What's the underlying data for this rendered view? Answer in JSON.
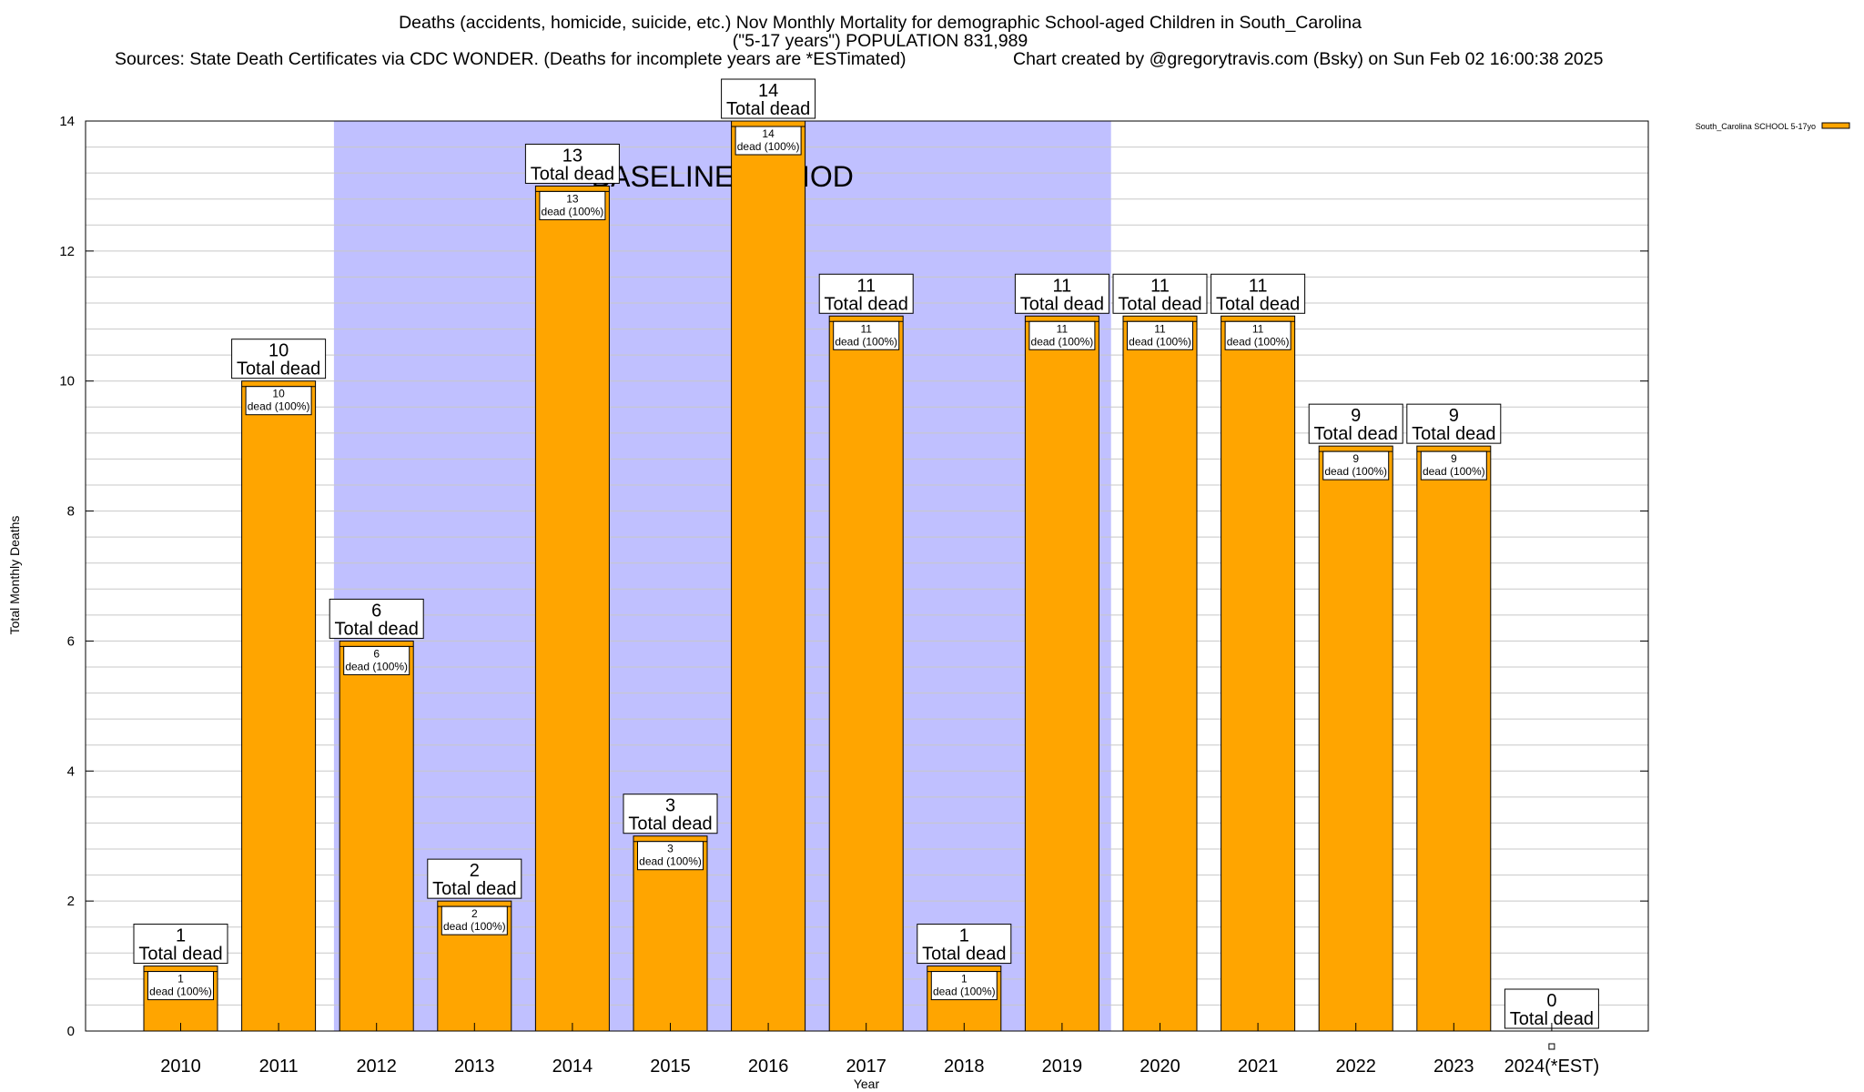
{
  "chart_data": {
    "type": "bar",
    "title_line1": "Deaths (accidents, homicide, suicide, etc.) Nov Monthly Mortality for demographic School-aged Children in South_Carolina",
    "title_line2": "(\"5-17 years\") POPULATION 831,989",
    "sources": "Sources: State Death Certificates via CDC WONDER. (Deaths for incomplete years are *ESTimated)",
    "credit": "Chart created by @gregorytravis.com (Bsky) on Sun Feb 02 16:00:38 2025",
    "xlabel": "Year",
    "ylabel": "Total Monthly Deaths",
    "ylim": [
      0,
      14
    ],
    "yticks": [
      0,
      2,
      4,
      6,
      8,
      10,
      12,
      14
    ],
    "categories": [
      "2010",
      "2011",
      "2012",
      "2013",
      "2014",
      "2015",
      "2016",
      "2017",
      "2018",
      "2019",
      "2020",
      "2021",
      "2022",
      "2023",
      "2024(*EST)"
    ],
    "series": [
      {
        "name": "South_Carolina SCHOOL 5-17yo",
        "color": "#ffa500",
        "values": [
          1,
          10,
          6,
          2,
          13,
          3,
          14,
          11,
          1,
          11,
          11,
          11,
          9,
          9,
          0
        ]
      }
    ],
    "total_label_suffix": "Total dead",
    "inner_label_suffix": "dead (100%)",
    "baseline": {
      "label": "BASELINE PERIOD",
      "start": "2012",
      "end": "2019",
      "color": "#c0c0ff"
    },
    "grid": true,
    "legend_position": "top-right"
  }
}
